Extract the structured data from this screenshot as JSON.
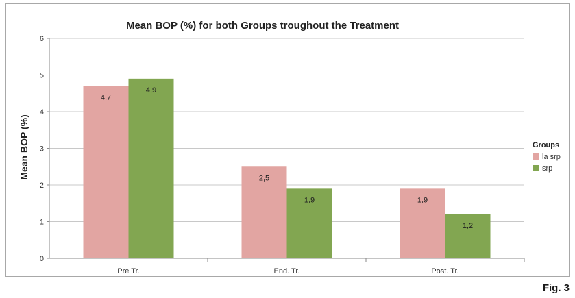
{
  "figure_label": "Fig. 3",
  "chart_data": {
    "type": "bar",
    "title": "Mean BOP (%) for both Groups troughout the Treatment",
    "xlabel": "",
    "ylabel": "Mean BOP (%)",
    "categories": [
      "Pre Tr.",
      "End. Tr.",
      "Post. Tr."
    ],
    "series": [
      {
        "name": "la srp",
        "values": [
          4.7,
          2.5,
          1.9
        ],
        "labels": [
          "4,7",
          "2,5",
          "1,9"
        ],
        "color": "#e2a5a2"
      },
      {
        "name": "srp",
        "values": [
          4.9,
          1.9,
          1.2
        ],
        "labels": [
          "4,9",
          "1,9",
          "1,2"
        ],
        "color": "#82a651"
      }
    ],
    "ylim": [
      0,
      6
    ],
    "yticks": [
      "0",
      "1",
      "2",
      "3",
      "4",
      "5",
      "6"
    ],
    "grid": true,
    "legend": {
      "title": "Groups",
      "placement": "right"
    }
  }
}
